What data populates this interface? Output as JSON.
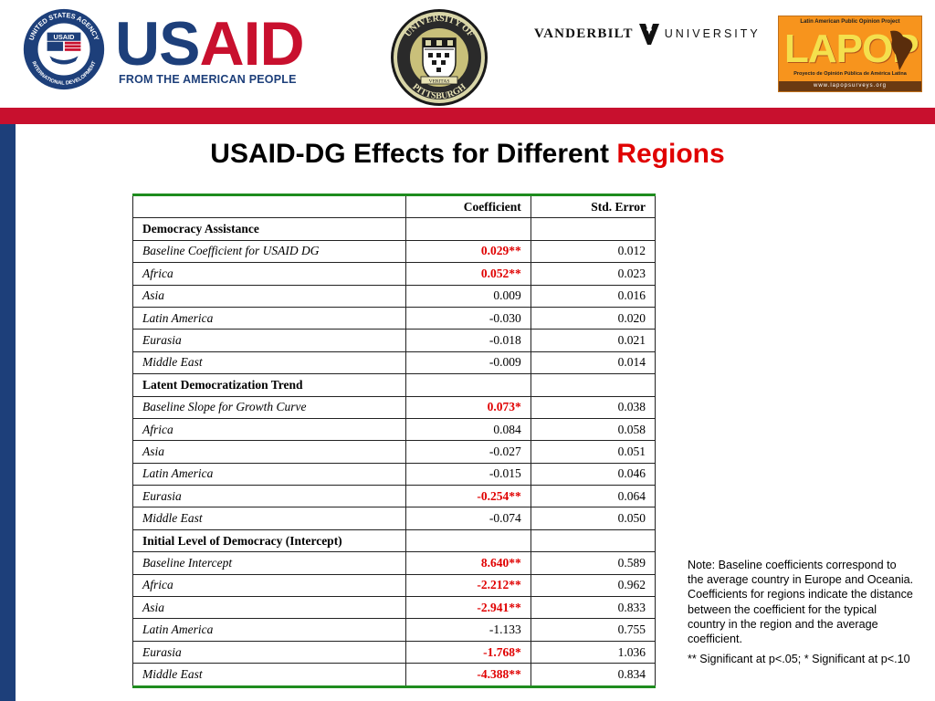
{
  "header": {
    "usaid": {
      "word_us": "US",
      "word_aid": "AID",
      "tagline": "FROM THE AMERICAN PEOPLE",
      "seal_top": "UNITED STATES AGENCY",
      "seal_bottom": "INTERNATIONAL DEVELOPMENT",
      "seal_usaid": "USAID"
    },
    "pitt": {
      "ring_top": "UNIVERSITY OF",
      "ring_bottom": "PITTSBURGH",
      "band_text": "VERITAS"
    },
    "vanderbilt": {
      "left": "VANDERBILT",
      "right": "UNIVERSITY"
    },
    "lapop": {
      "top": "Latin American Public Opinion Project",
      "word": "LAPOP",
      "bottom": "Proyecto de Opinión Pública de América Latina",
      "url": "www.lapopsurveys.org"
    }
  },
  "title": {
    "main": "USAID-DG Effects for Different",
    "accent": "Regions"
  },
  "table": {
    "headers": [
      "",
      "Coefficient",
      "Std. Error"
    ],
    "rows": [
      {
        "type": "section",
        "label": "Democracy Assistance",
        "coef": "",
        "se": "",
        "sig": false
      },
      {
        "type": "item",
        "label": "Baseline Coefficient for USAID DG",
        "coef": "0.029**",
        "se": "0.012",
        "sig": true
      },
      {
        "type": "item",
        "label": "Africa",
        "coef": "0.052**",
        "se": "0.023",
        "sig": true
      },
      {
        "type": "item",
        "label": "Asia",
        "coef": "0.009",
        "se": "0.016",
        "sig": false
      },
      {
        "type": "item",
        "label": "Latin America",
        "coef": "-0.030",
        "se": "0.020",
        "sig": false
      },
      {
        "type": "item",
        "label": "Eurasia",
        "coef": "-0.018",
        "se": "0.021",
        "sig": false
      },
      {
        "type": "item",
        "label": "Middle East",
        "coef": "-0.009",
        "se": "0.014",
        "sig": false
      },
      {
        "type": "section",
        "label": "Latent Democratization Trend",
        "coef": "",
        "se": "",
        "sig": false
      },
      {
        "type": "item",
        "label": "Baseline Slope for Growth Curve",
        "coef": "0.073*",
        "se": "0.038",
        "sig": true
      },
      {
        "type": "item",
        "label": "Africa",
        "coef": "0.084",
        "se": "0.058",
        "sig": false
      },
      {
        "type": "item",
        "label": "Asia",
        "coef": "-0.027",
        "se": "0.051",
        "sig": false
      },
      {
        "type": "item",
        "label": "Latin America",
        "coef": "-0.015",
        "se": "0.046",
        "sig": false
      },
      {
        "type": "item",
        "label": "Eurasia",
        "coef": "-0.254**",
        "se": "0.064",
        "sig": true
      },
      {
        "type": "item",
        "label": "Middle East",
        "coef": "-0.074",
        "se": "0.050",
        "sig": false
      },
      {
        "type": "section",
        "label": "Initial Level of Democracy (Intercept)",
        "coef": "",
        "se": "",
        "sig": false
      },
      {
        "type": "item",
        "label": "Baseline Intercept",
        "coef": "8.640**",
        "se": "0.589",
        "sig": true
      },
      {
        "type": "item",
        "label": "Africa",
        "coef": "-2.212**",
        "se": "0.962",
        "sig": true
      },
      {
        "type": "item",
        "label": "Asia",
        "coef": "-2.941**",
        "se": "0.833",
        "sig": true
      },
      {
        "type": "item",
        "label": "Latin America",
        "coef": "-1.133",
        "se": "0.755",
        "sig": false
      },
      {
        "type": "item",
        "label": "Eurasia",
        "coef": "-1.768*",
        "se": "1.036",
        "sig": true
      },
      {
        "type": "item",
        "label": "Middle East",
        "coef": "-4.388**",
        "se": "0.834",
        "sig": true
      }
    ]
  },
  "note": {
    "text": "Note: Baseline coefficients correspond to the average country in Europe and Oceania.  Coefficients for regions indicate the distance between the coefficient for the typical country in the region and the average coefficient.",
    "significance": "** Significant at p<.05; * Significant at p<.10"
  },
  "colors": {
    "brand_blue": "#1d3f7a",
    "brand_red": "#c8102e",
    "significant_red": "#e00000",
    "table_rule_green": "#1e8c1e",
    "lapop_orange": "#f7941d"
  },
  "icons": [
    "usaid-seal-icon",
    "pitt-seal-icon",
    "vanderbilt-v-icon",
    "lapop-logo-icon"
  ]
}
